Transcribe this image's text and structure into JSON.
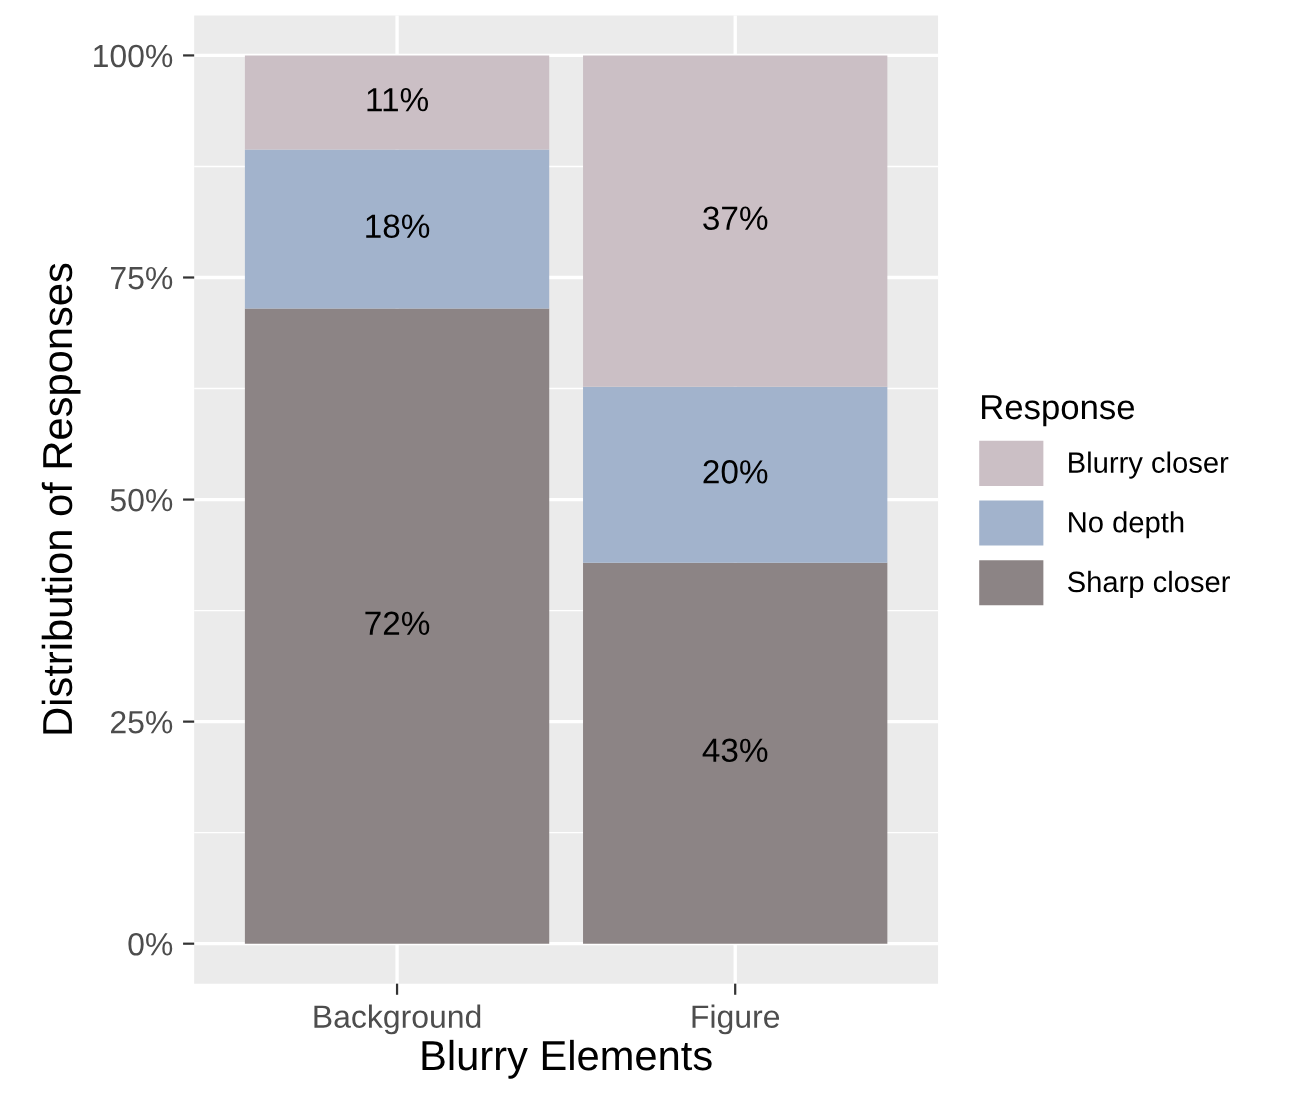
{
  "chart_data": {
    "type": "bar",
    "stacked": true,
    "xlabel": "Blurry Elements",
    "ylabel": "Distribution of Responses",
    "categories": [
      "Background",
      "Figure"
    ],
    "series": [
      {
        "name": "Sharp closer",
        "color": "#8c8485",
        "values": [
          71.5,
          42.9
        ],
        "value_labels": [
          "72%",
          "43%"
        ]
      },
      {
        "name": "No depth",
        "color": "#a2b3cc",
        "values": [
          17.9,
          19.8
        ],
        "value_labels": [
          "18%",
          "20%"
        ]
      },
      {
        "name": "Blurry closer",
        "color": "#cbbfc5",
        "values": [
          10.6,
          37.3
        ],
        "value_labels": [
          "11%",
          "37%"
        ]
      }
    ],
    "ylim": [
      -4.5,
      104.5
    ],
    "yticks": [
      {
        "value": 0,
        "label": "0%"
      },
      {
        "value": 25,
        "label": "25%"
      },
      {
        "value": 50,
        "label": "50%"
      },
      {
        "value": 75,
        "label": "75%"
      },
      {
        "value": 100,
        "label": "100%"
      }
    ],
    "grid": true,
    "legend": "right",
    "legend_title": "Response"
  }
}
